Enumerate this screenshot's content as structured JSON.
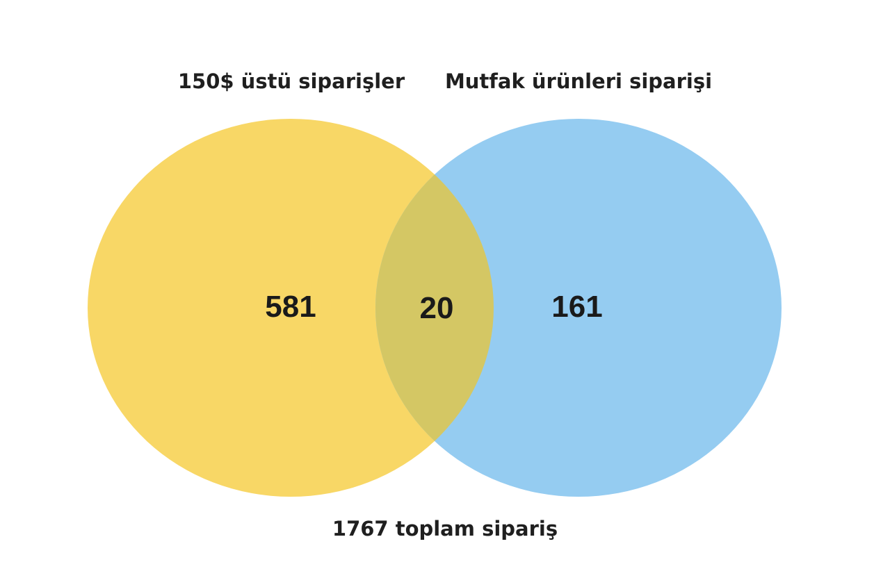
{
  "sets": {
    "a": {
      "label": "150$ üstü siparişler",
      "color": "#f8d766"
    },
    "b": {
      "label": "Mutfak ürünleri siparişi",
      "color": "#95ccf1"
    },
    "overlap_color": "#d4c764"
  },
  "regions": {
    "a_only": "581",
    "both": "20",
    "b_only": "161"
  },
  "total": "1767 toplam sipariş"
}
